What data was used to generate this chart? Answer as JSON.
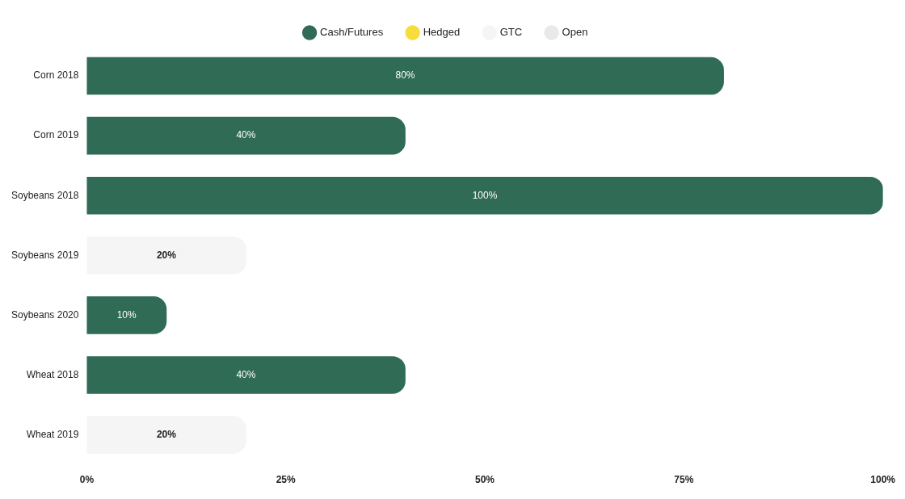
{
  "chart_data": {
    "type": "bar",
    "orientation": "horizontal",
    "stacked": true,
    "categories": [
      "Corn 2018",
      "Corn 2019",
      "Soybeans 2018",
      "Soybeans 2019",
      "Soybeans 2020",
      "Wheat 2018",
      "Wheat 2019"
    ],
    "series": [
      {
        "name": "Cash/Futures",
        "color": "#2f6b55",
        "values": [
          80,
          40,
          100,
          null,
          10,
          40,
          null
        ],
        "value_labels": [
          "80%",
          "40%",
          "100%",
          null,
          "10%",
          "40%",
          null
        ]
      },
      {
        "name": "Hedged",
        "color": "#f7dc3c",
        "values": [
          null,
          null,
          null,
          null,
          null,
          null,
          null
        ]
      },
      {
        "name": "GTC",
        "color": "#f4f5f4",
        "values": [
          null,
          null,
          null,
          20,
          null,
          null,
          20
        ],
        "value_labels": [
          null,
          null,
          null,
          "20%",
          null,
          null,
          "20%"
        ]
      },
      {
        "name": "Open",
        "color": "#e8eae9",
        "values": [
          null,
          null,
          null,
          null,
          null,
          null,
          null
        ]
      }
    ],
    "xlim": [
      0,
      100
    ],
    "xticks": [
      {
        "value": 0,
        "label": "0%"
      },
      {
        "value": 25,
        "label": "25%"
      },
      {
        "value": 50,
        "label": "50%"
      },
      {
        "value": 75,
        "label": "75%"
      },
      {
        "value": 100,
        "label": "100%"
      }
    ],
    "grid": false,
    "legend": "top"
  }
}
